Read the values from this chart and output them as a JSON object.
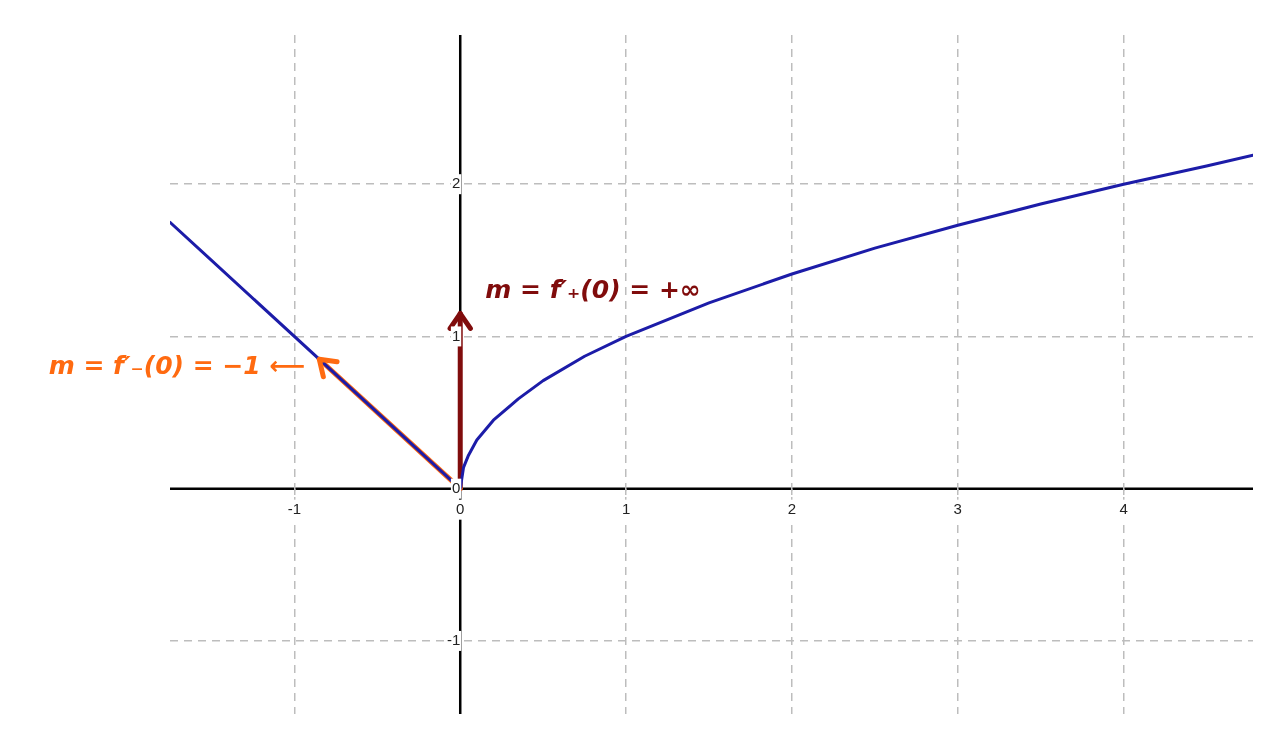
{
  "chart_data": {
    "type": "line",
    "xlim": [
      -1.75,
      4.78
    ],
    "ylim": [
      -1.48,
      2.98
    ],
    "xticks": [
      -1,
      0,
      1,
      2,
      3,
      4
    ],
    "yticks": [
      -1,
      0,
      1,
      2
    ],
    "grid": true,
    "legend": false,
    "marker": "none",
    "line_style": "solid",
    "series": [
      {
        "color": "#1c1ca8",
        "x": [
          -1.75,
          0,
          0.02,
          0.05,
          0.1,
          0.2,
          0.35,
          0.5,
          0.75,
          1,
          1.5,
          2,
          2.5,
          3,
          3.5,
          4,
          4.5,
          4.78
        ],
        "values": [
          1.75,
          0,
          0.14,
          0.22,
          0.32,
          0.45,
          0.59,
          0.71,
          0.87,
          1,
          1.22,
          1.41,
          1.58,
          1.73,
          1.87,
          2,
          2.12,
          2.19
        ]
      },
      {
        "color": "#ff6a10",
        "x": [
          0,
          -0.85
        ],
        "values": [
          0,
          0.85
        ]
      },
      {
        "color": "#800c0c",
        "x": [
          0,
          0
        ],
        "values": [
          0,
          1.15
        ]
      }
    ],
    "annotations": [
      {
        "text": "m = f′₋(0) = −1 ⟵",
        "x": -0.85,
        "y": 0.85
      },
      {
        "text": "m = f′₊(0) = +∞",
        "x": 0,
        "y": 1.15
      }
    ]
  }
}
